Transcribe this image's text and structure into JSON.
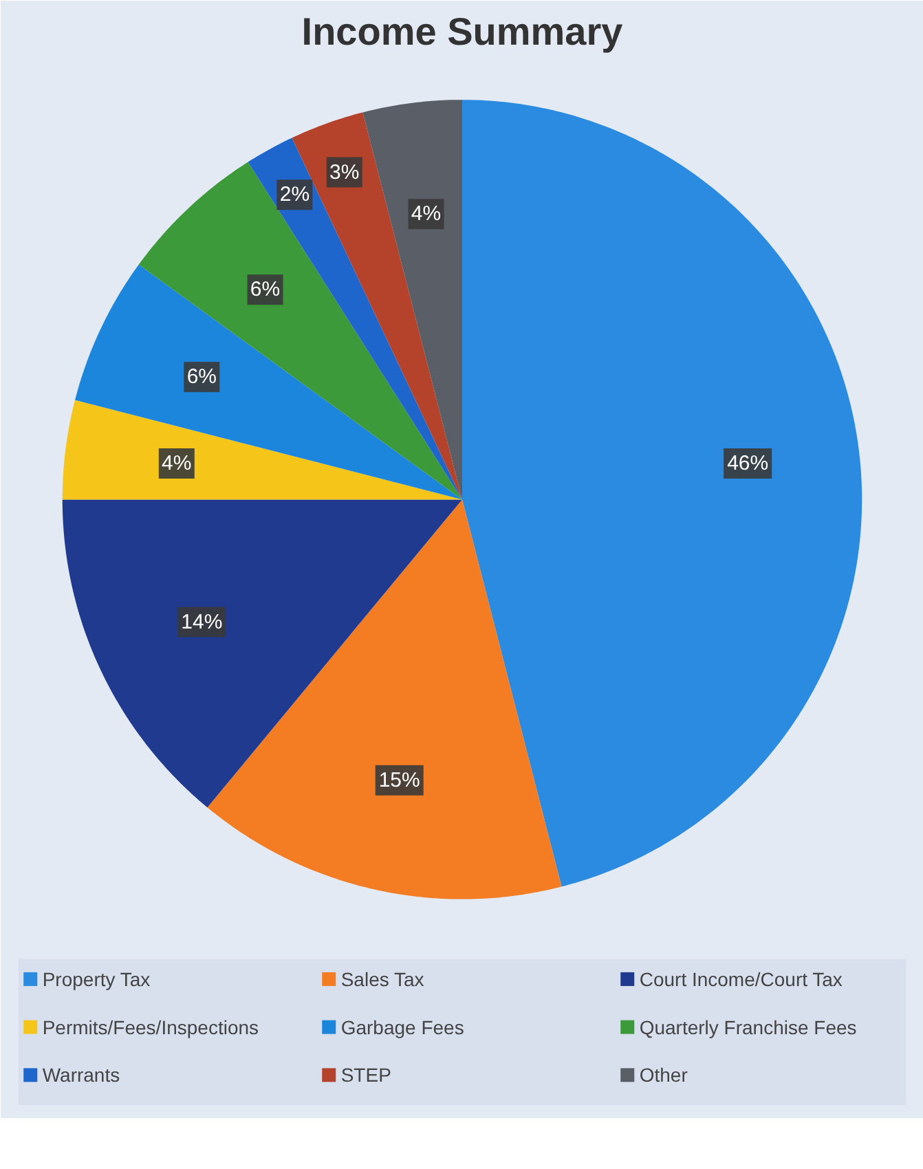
{
  "chart_data": {
    "type": "pie",
    "title": "Income Summary",
    "categories": [
      "Property Tax",
      "Sales Tax",
      "Court Income/Court Tax",
      "Permits/Fees/Inspections",
      "Garbage Fees",
      "Quarterly Franchise Fees",
      "Warrants",
      "STEP",
      "Other"
    ],
    "values": [
      46,
      15,
      14,
      4,
      6,
      6,
      2,
      3,
      4
    ],
    "colors": [
      "#2a8be0",
      "#f47c22",
      "#1f3a8f",
      "#f5c51a",
      "#1c86dc",
      "#3c9a3a",
      "#1f66cc",
      "#b5432c",
      "#5a5e66"
    ],
    "value_labels": [
      "46%",
      "15%",
      "14%",
      "4%",
      "6%",
      "6%",
      "2%",
      "3%",
      "4%"
    ],
    "legend": "bottom"
  }
}
